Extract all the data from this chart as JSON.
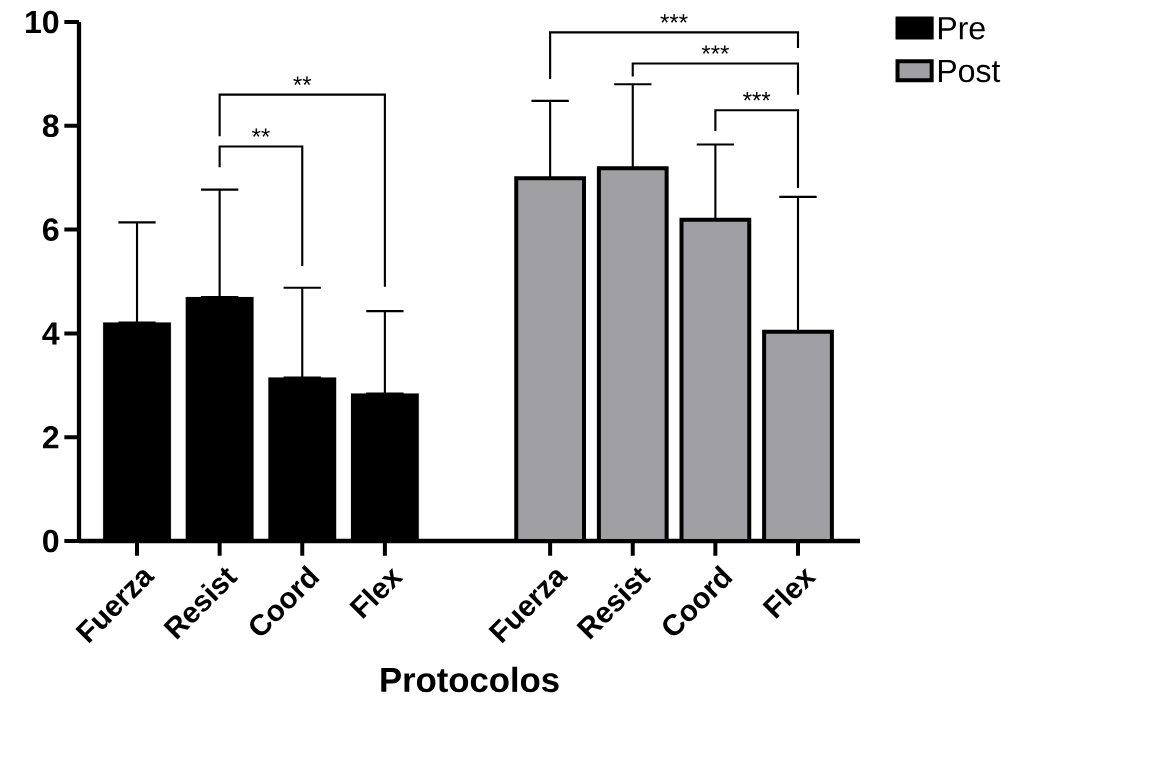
{
  "chart_data": {
    "type": "bar",
    "xlabel": "Protocolos",
    "categories": [
      "Fuerza",
      "Resist",
      "Coord",
      "Flex",
      null,
      "Fuerza",
      "Resist",
      "Coord",
      "Flex"
    ],
    "series": [
      {
        "name": "Pre",
        "color": "#000000",
        "values": [
          4.21,
          4.7,
          3.15,
          2.84,
          null,
          null,
          null,
          null,
          null
        ],
        "errors": [
          [
            4.21,
            6.14
          ],
          [
            4.7,
            6.77
          ],
          [
            3.15,
            4.88
          ],
          [
            2.84,
            4.43
          ],
          null,
          null,
          null,
          null,
          null
        ]
      },
      {
        "name": "Post",
        "color": "#a0a0a4",
        "values": [
          null,
          null,
          null,
          null,
          null,
          6.99,
          7.18,
          6.19,
          4.03
        ],
        "errors": [
          null,
          null,
          null,
          null,
          null,
          [
            6.99,
            8.48
          ],
          [
            7.18,
            8.8
          ],
          [
            6.19,
            7.64
          ],
          [
            4.03,
            6.63
          ]
        ]
      }
    ],
    "ylim": [
      0,
      10
    ],
    "yticks": [
      0,
      2,
      4,
      6,
      8,
      10
    ],
    "grid": false,
    "legend": "top right",
    "annotations": [
      "**",
      "**",
      "***",
      "***",
      "***"
    ]
  }
}
